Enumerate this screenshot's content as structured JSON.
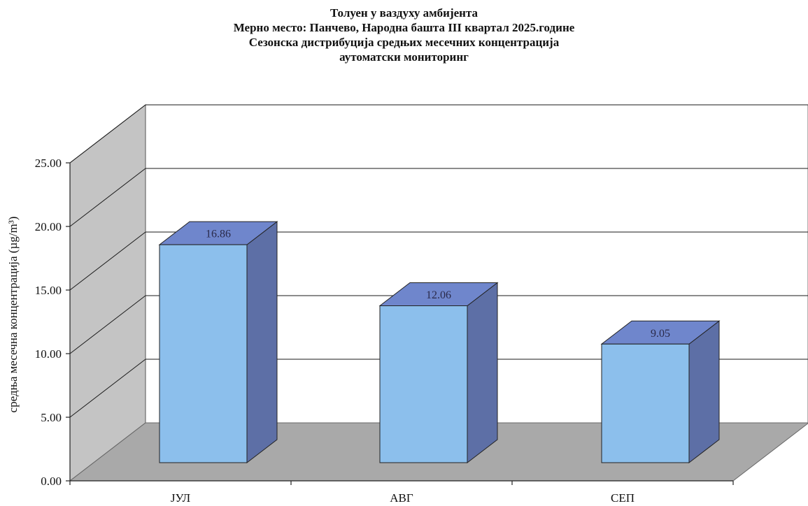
{
  "chart_data": {
    "type": "bar",
    "title_lines": [
      "Толуен у ваздуху амбијента",
      "Мерно место: Панчево, Народна башта III квартал 2025.године",
      "Сезонска дистрибуција средњих месечних концентрација",
      "аутоматски мониторинг"
    ],
    "ylabel": "средња месечна концентрација (µg/m³)",
    "xlabel": "",
    "categories": [
      "ЈУЛ",
      "АВГ",
      "СЕП"
    ],
    "values": [
      16.86,
      12.06,
      9.05
    ],
    "data_labels": [
      "16.86",
      "12.06",
      "9.05"
    ],
    "y_ticks": [
      "0.00",
      "5.00",
      "10.00",
      "15.00",
      "20.00",
      "25.00"
    ],
    "ylim": [
      0,
      25
    ],
    "grid": true,
    "three_d": true,
    "legend": "none",
    "colors": {
      "bar_front": "#8cbfec",
      "bar_top": "#6f86cc",
      "bar_side": "#5d6fa6",
      "back_wall": "#ffffff",
      "side_wall": "#c4c4c4",
      "floor": "#a9a9a9",
      "grid": "#1a1a1a"
    }
  }
}
